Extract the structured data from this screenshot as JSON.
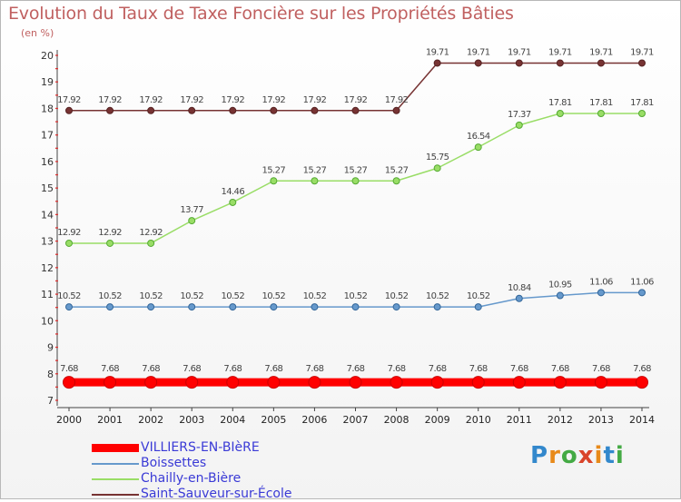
{
  "chart_data": {
    "type": "line",
    "title": "Evolution du Taux de Taxe Foncière sur les Propriétés Bâties",
    "ylabel": "(en %)",
    "xlabel": "",
    "x": [
      "2000",
      "2001",
      "2002",
      "2003",
      "2004",
      "2005",
      "2006",
      "2007",
      "2008",
      "2009",
      "2010",
      "2011",
      "2012",
      "2013",
      "2014"
    ],
    "ylim": [
      7,
      20
    ],
    "yticks": [
      "7",
      "8",
      "9",
      "10",
      "11",
      "12",
      "13",
      "14",
      "15",
      "16",
      "17",
      "18",
      "19",
      "20"
    ],
    "grid": false,
    "legend_position": "bottom-left",
    "series": [
      {
        "name": "VILLIERS-EN-BIèRE",
        "color": "#ff0000",
        "values": [
          7.68,
          7.68,
          7.68,
          7.68,
          7.68,
          7.68,
          7.68,
          7.68,
          7.68,
          7.68,
          7.68,
          7.68,
          7.68,
          7.68,
          7.68
        ],
        "labels": [
          "7.68",
          "7.68",
          "7.68",
          "7.68",
          "7.68",
          "7.68",
          "7.68",
          "7.68",
          "7.68",
          "7.68",
          "7.68",
          "7.68",
          "7.68",
          "7.68",
          "7.68"
        ]
      },
      {
        "name": "Boissettes",
        "color": "#6699cc",
        "values": [
          10.52,
          10.52,
          10.52,
          10.52,
          10.52,
          10.52,
          10.52,
          10.52,
          10.52,
          10.52,
          10.52,
          10.84,
          10.95,
          11.06,
          11.06
        ],
        "labels": [
          "10.52",
          "10.52",
          "10.52",
          "10.52",
          "10.52",
          "10.52",
          "10.52",
          "10.52",
          "10.52",
          "10.52",
          "10.52",
          "10.84",
          "10.95",
          "11.06",
          "11.06"
        ]
      },
      {
        "name": "Chailly-en-Bière",
        "color": "#99dd66",
        "values": [
          12.92,
          12.92,
          12.92,
          13.77,
          14.46,
          15.27,
          15.27,
          15.27,
          15.27,
          15.75,
          16.54,
          17.37,
          17.81,
          17.81,
          17.81
        ],
        "labels": [
          "12.92",
          "12.92",
          "12.92",
          "13.77",
          "14.46",
          "15.27",
          "15.27",
          "15.27",
          "15.27",
          "15.75",
          "16.54",
          "17.37",
          "17.81",
          "17.81",
          "17.81"
        ]
      },
      {
        "name": "Saint-Sauveur-sur-École",
        "color": "#773333",
        "values": [
          17.92,
          17.92,
          17.92,
          17.92,
          17.92,
          17.92,
          17.92,
          17.92,
          17.92,
          19.71,
          19.71,
          19.71,
          19.71,
          19.71,
          19.71
        ],
        "labels": [
          "17.92",
          "17.92",
          "17.92",
          "17.92",
          "17.92",
          "17.92",
          "17.92",
          "17.92",
          "17.92",
          "19.71",
          "19.71",
          "19.71",
          "19.71",
          "19.71",
          "19.71"
        ]
      }
    ]
  },
  "brand": {
    "letters": [
      "P",
      "r",
      "o",
      "x",
      "i",
      "t",
      "i"
    ],
    "colors": [
      "#3388cc",
      "#e88a1a",
      "#44aa44",
      "#d9442a",
      "#e88a1a",
      "#3388cc",
      "#44aa44"
    ]
  }
}
